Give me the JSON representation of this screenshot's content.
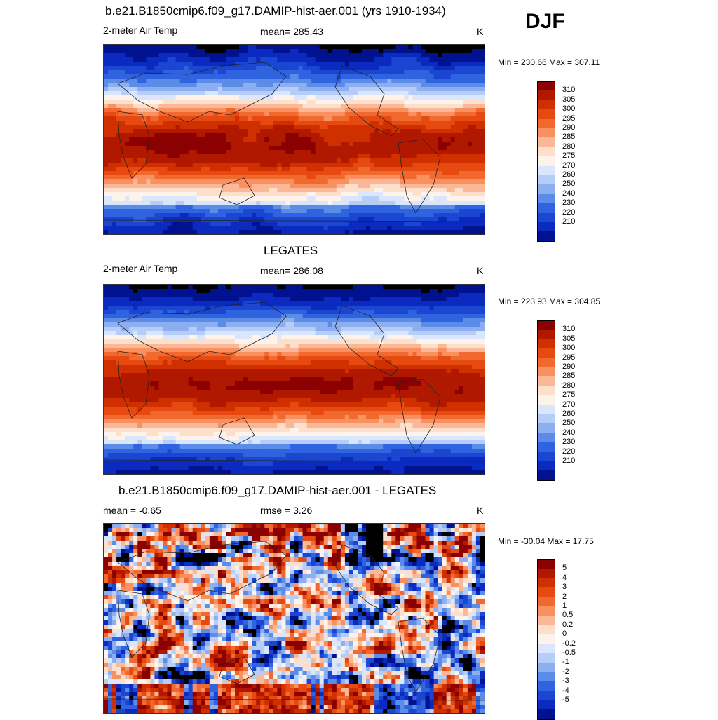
{
  "season": "DJF",
  "panels": [
    {
      "title": "b.e21.B1850cmip6.f09_g17.DAMIP-hist-aer.001 (yrs 1910-1934)",
      "left_label": "2-meter Air Temp",
      "center_label": "mean= 285.43",
      "right_label": "K",
      "minmax": "Min = 230.66 Max = 307.11",
      "colorbar": {
        "labels": [
          "310",
          "305",
          "300",
          "295",
          "290",
          "285",
          "280",
          "275",
          "270",
          "260",
          "250",
          "240",
          "230",
          "220",
          "210"
        ],
        "colors": [
          "#8b0000",
          "#b01800",
          "#d03000",
          "#e64a10",
          "#f06a30",
          "#f99060",
          "#fbb898",
          "#fde0cc",
          "#fdf3ea",
          "#d9e6fb",
          "#b5cdf7",
          "#8eaef2",
          "#5b8ce8",
          "#2f63df",
          "#1a46d2",
          "#0b2ac0",
          "#00128f"
        ]
      },
      "chart_data": {
        "type": "heatmap",
        "variable": "2-meter Air Temp",
        "units": "K",
        "mean": 285.43,
        "min": 230.66,
        "max": 307.11,
        "levels": [
          210,
          220,
          230,
          240,
          250,
          260,
          270,
          275,
          280,
          285,
          290,
          295,
          300,
          305,
          310
        ]
      }
    },
    {
      "title": "LEGATES",
      "left_label": "2-meter Air Temp",
      "center_label": "mean= 286.08",
      "right_label": "K",
      "minmax": "Min = 223.93 Max = 304.85",
      "colorbar": {
        "labels": [
          "310",
          "305",
          "300",
          "295",
          "290",
          "285",
          "280",
          "275",
          "270",
          "260",
          "250",
          "240",
          "230",
          "220",
          "210"
        ],
        "colors": [
          "#8b0000",
          "#b01800",
          "#d03000",
          "#e64a10",
          "#f06a30",
          "#f99060",
          "#fbb898",
          "#fde0cc",
          "#fdf3ea",
          "#d9e6fb",
          "#b5cdf7",
          "#8eaef2",
          "#5b8ce8",
          "#2f63df",
          "#1a46d2",
          "#0b2ac0",
          "#00128f"
        ]
      },
      "chart_data": {
        "type": "heatmap",
        "variable": "2-meter Air Temp",
        "units": "K",
        "mean": 286.08,
        "min": 223.93,
        "max": 304.85,
        "levels": [
          210,
          220,
          230,
          240,
          250,
          260,
          270,
          275,
          280,
          285,
          290,
          295,
          300,
          305,
          310
        ]
      }
    },
    {
      "title": "b.e21.B1850cmip6.f09_g17.DAMIP-hist-aer.001 - LEGATES",
      "left_label": "mean =  -0.65",
      "center_label": "rmse =   3.26",
      "right_label": "K",
      "minmax": "Min = -30.04 Max =  17.75",
      "colorbar": {
        "labels": [
          "5",
          "4",
          "3",
          "2",
          "1",
          "0.5",
          "0.2",
          "0",
          "-0.2",
          "-0.5",
          "-1",
          "-2",
          "-3",
          "-4",
          "-5"
        ],
        "colors": [
          "#8b0000",
          "#b01800",
          "#d03000",
          "#e64a10",
          "#f06a30",
          "#f99060",
          "#fbb898",
          "#fde0cc",
          "#fdf3ea",
          "#d9e6fb",
          "#b5cdf7",
          "#8eaef2",
          "#5b8ce8",
          "#2f63df",
          "#1a46d2",
          "#0b2ac0",
          "#00128f"
        ]
      },
      "chart_data": {
        "type": "heatmap",
        "variable": "difference",
        "units": "K",
        "mean": -0.65,
        "rmse": 3.26,
        "min": -30.04,
        "max": 17.75,
        "levels": [
          -5,
          -4,
          -3,
          -2,
          -1,
          -0.5,
          -0.2,
          0,
          0.2,
          0.5,
          1,
          2,
          3,
          4,
          5
        ]
      }
    }
  ]
}
